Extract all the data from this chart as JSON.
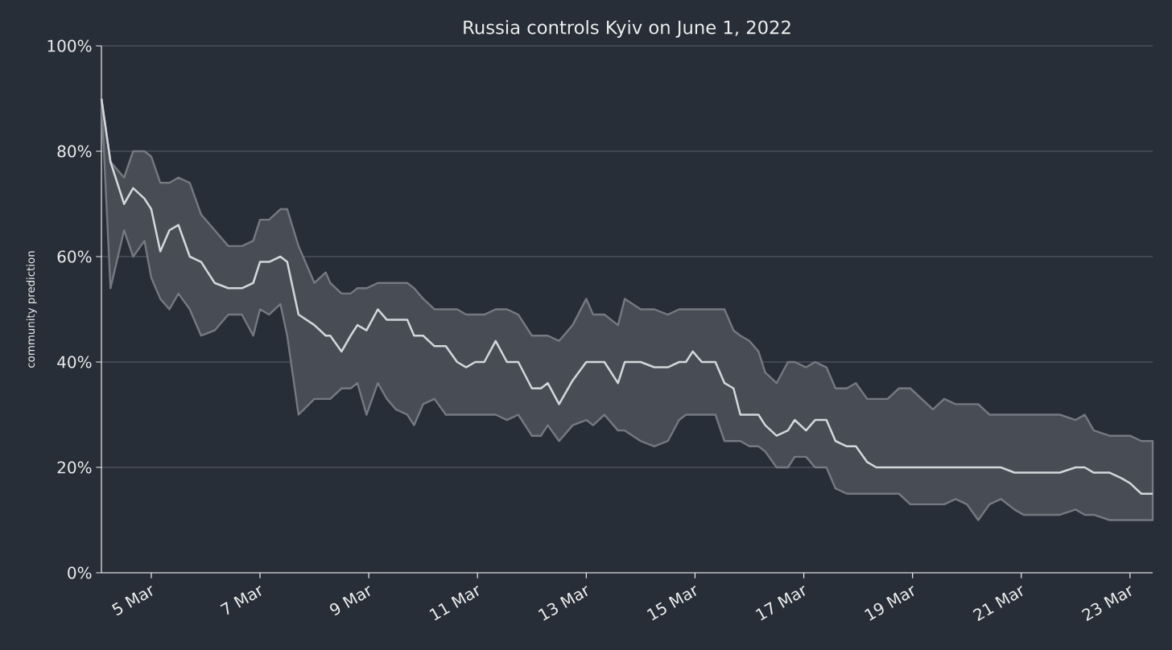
{
  "chart_data": {
    "type": "line",
    "title": "Russia controls Kyiv on June 1, 2022",
    "ylabel": "community prediction",
    "x": [
      "2022-03-04T02:00",
      "2022-03-04T06:00",
      "2022-03-04T12:00",
      "2022-03-04T16:00",
      "2022-03-04T21:00",
      "2022-03-05T00:00",
      "2022-03-05T04:00",
      "2022-03-05T08:00",
      "2022-03-05T12:00",
      "2022-03-05T17:00",
      "2022-03-05T22:00",
      "2022-03-06T04:00",
      "2022-03-06T10:00",
      "2022-03-06T16:00",
      "2022-03-06T21:00",
      "2022-03-07T00:00",
      "2022-03-07T04:00",
      "2022-03-07T09:00",
      "2022-03-07T12:00",
      "2022-03-07T17:00",
      "2022-03-08T00:00",
      "2022-03-08T05:00",
      "2022-03-08T07:00",
      "2022-03-08T12:00",
      "2022-03-08T16:00",
      "2022-03-08T19:00",
      "2022-03-08T23:00",
      "2022-03-09T04:00",
      "2022-03-09T08:00",
      "2022-03-09T12:00",
      "2022-03-09T17:00",
      "2022-03-09T20:00",
      "2022-03-10T00:00",
      "2022-03-10T05:00",
      "2022-03-10T10:00",
      "2022-03-10T15:00",
      "2022-03-10T19:00",
      "2022-03-10T23:00",
      "2022-03-11T03:00",
      "2022-03-11T08:00",
      "2022-03-11T13:00",
      "2022-03-11T18:00",
      "2022-03-12T00:00",
      "2022-03-12T04:00",
      "2022-03-12T07:00",
      "2022-03-12T12:00",
      "2022-03-12T18:00",
      "2022-03-13T00:00",
      "2022-03-13T03:00",
      "2022-03-13T08:00",
      "2022-03-13T14:00",
      "2022-03-13T17:00",
      "2022-03-14T00:00",
      "2022-03-14T06:00",
      "2022-03-14T12:00",
      "2022-03-14T17:00",
      "2022-03-14T20:00",
      "2022-03-14T23:00",
      "2022-03-15T03:00",
      "2022-03-15T09:00",
      "2022-03-15T13:00",
      "2022-03-15T17:00",
      "2022-03-15T20:00",
      "2022-03-16T00:00",
      "2022-03-16T04:00",
      "2022-03-16T07:00",
      "2022-03-16T12:00",
      "2022-03-16T17:00",
      "2022-03-16T20:00",
      "2022-03-17T01:00",
      "2022-03-17T05:00",
      "2022-03-17T10:00",
      "2022-03-17T14:00",
      "2022-03-17T19:00",
      "2022-03-17T23:00",
      "2022-03-18T04:00",
      "2022-03-18T08:00",
      "2022-03-18T13:00",
      "2022-03-18T18:00",
      "2022-03-18T23:00",
      "2022-03-19T09:00",
      "2022-03-19T14:00",
      "2022-03-19T19:00",
      "2022-03-20T00:00",
      "2022-03-20T05:00",
      "2022-03-20T10:00",
      "2022-03-20T15:00",
      "2022-03-20T21:00",
      "2022-03-21T01:00",
      "2022-03-21T17:00",
      "2022-03-22T00:00",
      "2022-03-22T04:00",
      "2022-03-22T08:00",
      "2022-03-22T15:00",
      "2022-03-22T20:00",
      "2022-03-23T00:00",
      "2022-03-23T05:00",
      "2022-03-23T10:00"
    ],
    "series": [
      {
        "color": "#d4d6da",
        "values": [
          90,
          78,
          70,
          73,
          71,
          69,
          61,
          65,
          66,
          60,
          59,
          55,
          54,
          54,
          55,
          59,
          59,
          60,
          59,
          49,
          47,
          45,
          45,
          42,
          45,
          47,
          46,
          50,
          48,
          48,
          48,
          45,
          45,
          43,
          43,
          40,
          39,
          40,
          40,
          44,
          40,
          40,
          35,
          35,
          36,
          32,
          36.5,
          40,
          40,
          40,
          36,
          40,
          40,
          39,
          39,
          40,
          40,
          42,
          40,
          40,
          36,
          35,
          30,
          30,
          30,
          28,
          26,
          27,
          29,
          27,
          29,
          29,
          25,
          24,
          24,
          21,
          20,
          20,
          20,
          20,
          20,
          20,
          20,
          20,
          20,
          20,
          20,
          19,
          19,
          19,
          20,
          20,
          19,
          19,
          18,
          17,
          15,
          15
        ],
        "upper": [
          90,
          78,
          75,
          80,
          80,
          79,
          74,
          74,
          75,
          74,
          68,
          65,
          62,
          62,
          63,
          67,
          67,
          69,
          69,
          62,
          55,
          57,
          55,
          53,
          53,
          54,
          54,
          55,
          55,
          55,
          55,
          54,
          52,
          50,
          50,
          50,
          49,
          49,
          49,
          50,
          50,
          49,
          45,
          45,
          45,
          44,
          47,
          52,
          49,
          49,
          47,
          52,
          50,
          50,
          49,
          50,
          50,
          50,
          50,
          50,
          50,
          46,
          45,
          44,
          42,
          38,
          36,
          40,
          40,
          39,
          40,
          39,
          35,
          35,
          36,
          33,
          33,
          33,
          35,
          35,
          31,
          33,
          32,
          32,
          32,
          30,
          30,
          30,
          30,
          30,
          29,
          30,
          27,
          26,
          26,
          26,
          25,
          25
        ],
        "lower": [
          90,
          54,
          65,
          60,
          63,
          56,
          52,
          50,
          53,
          50,
          45,
          46,
          49,
          49,
          45,
          50,
          49,
          51,
          45,
          30,
          33,
          33,
          33,
          35,
          35,
          36,
          30,
          36,
          33,
          31,
          30,
          28,
          32,
          33,
          30,
          30,
          30,
          30,
          30,
          30,
          29,
          30,
          26,
          26,
          28,
          25,
          28,
          29,
          28,
          30,
          27,
          27,
          25,
          24,
          25,
          29,
          30,
          30,
          30,
          30,
          25,
          25,
          25,
          24,
          24,
          23,
          20,
          20,
          22,
          22,
          20,
          20,
          16,
          15,
          15,
          15,
          15,
          15,
          15,
          13,
          13,
          13,
          14,
          13,
          10,
          13,
          14,
          12,
          11,
          11,
          12,
          11,
          11,
          10,
          10,
          10,
          10,
          10
        ]
      }
    ],
    "xlim": [
      "2022-03-04T02:00",
      "2022-03-23T10:00"
    ],
    "xticks": [
      {
        "value": "2022-03-05",
        "label": "5 Mar"
      },
      {
        "value": "2022-03-07",
        "label": "7 Mar"
      },
      {
        "value": "2022-03-09",
        "label": "9 Mar"
      },
      {
        "value": "2022-03-11",
        "label": "11 Mar"
      },
      {
        "value": "2022-03-13",
        "label": "13 Mar"
      },
      {
        "value": "2022-03-15",
        "label": "15 Mar"
      },
      {
        "value": "2022-03-17",
        "label": "17 Mar"
      },
      {
        "value": "2022-03-19",
        "label": "19 Mar"
      },
      {
        "value": "2022-03-21",
        "label": "21 Mar"
      },
      {
        "value": "2022-03-23",
        "label": "23 Mar"
      }
    ],
    "ylim": [
      0,
      100
    ],
    "yticks": [
      {
        "value": 0,
        "label": "0%"
      },
      {
        "value": 20,
        "label": "20%"
      },
      {
        "value": 40,
        "label": "40%"
      },
      {
        "value": 60,
        "label": "60%"
      },
      {
        "value": 80,
        "label": "80%"
      },
      {
        "value": 100,
        "label": "100%"
      }
    ],
    "grid": "y"
  }
}
